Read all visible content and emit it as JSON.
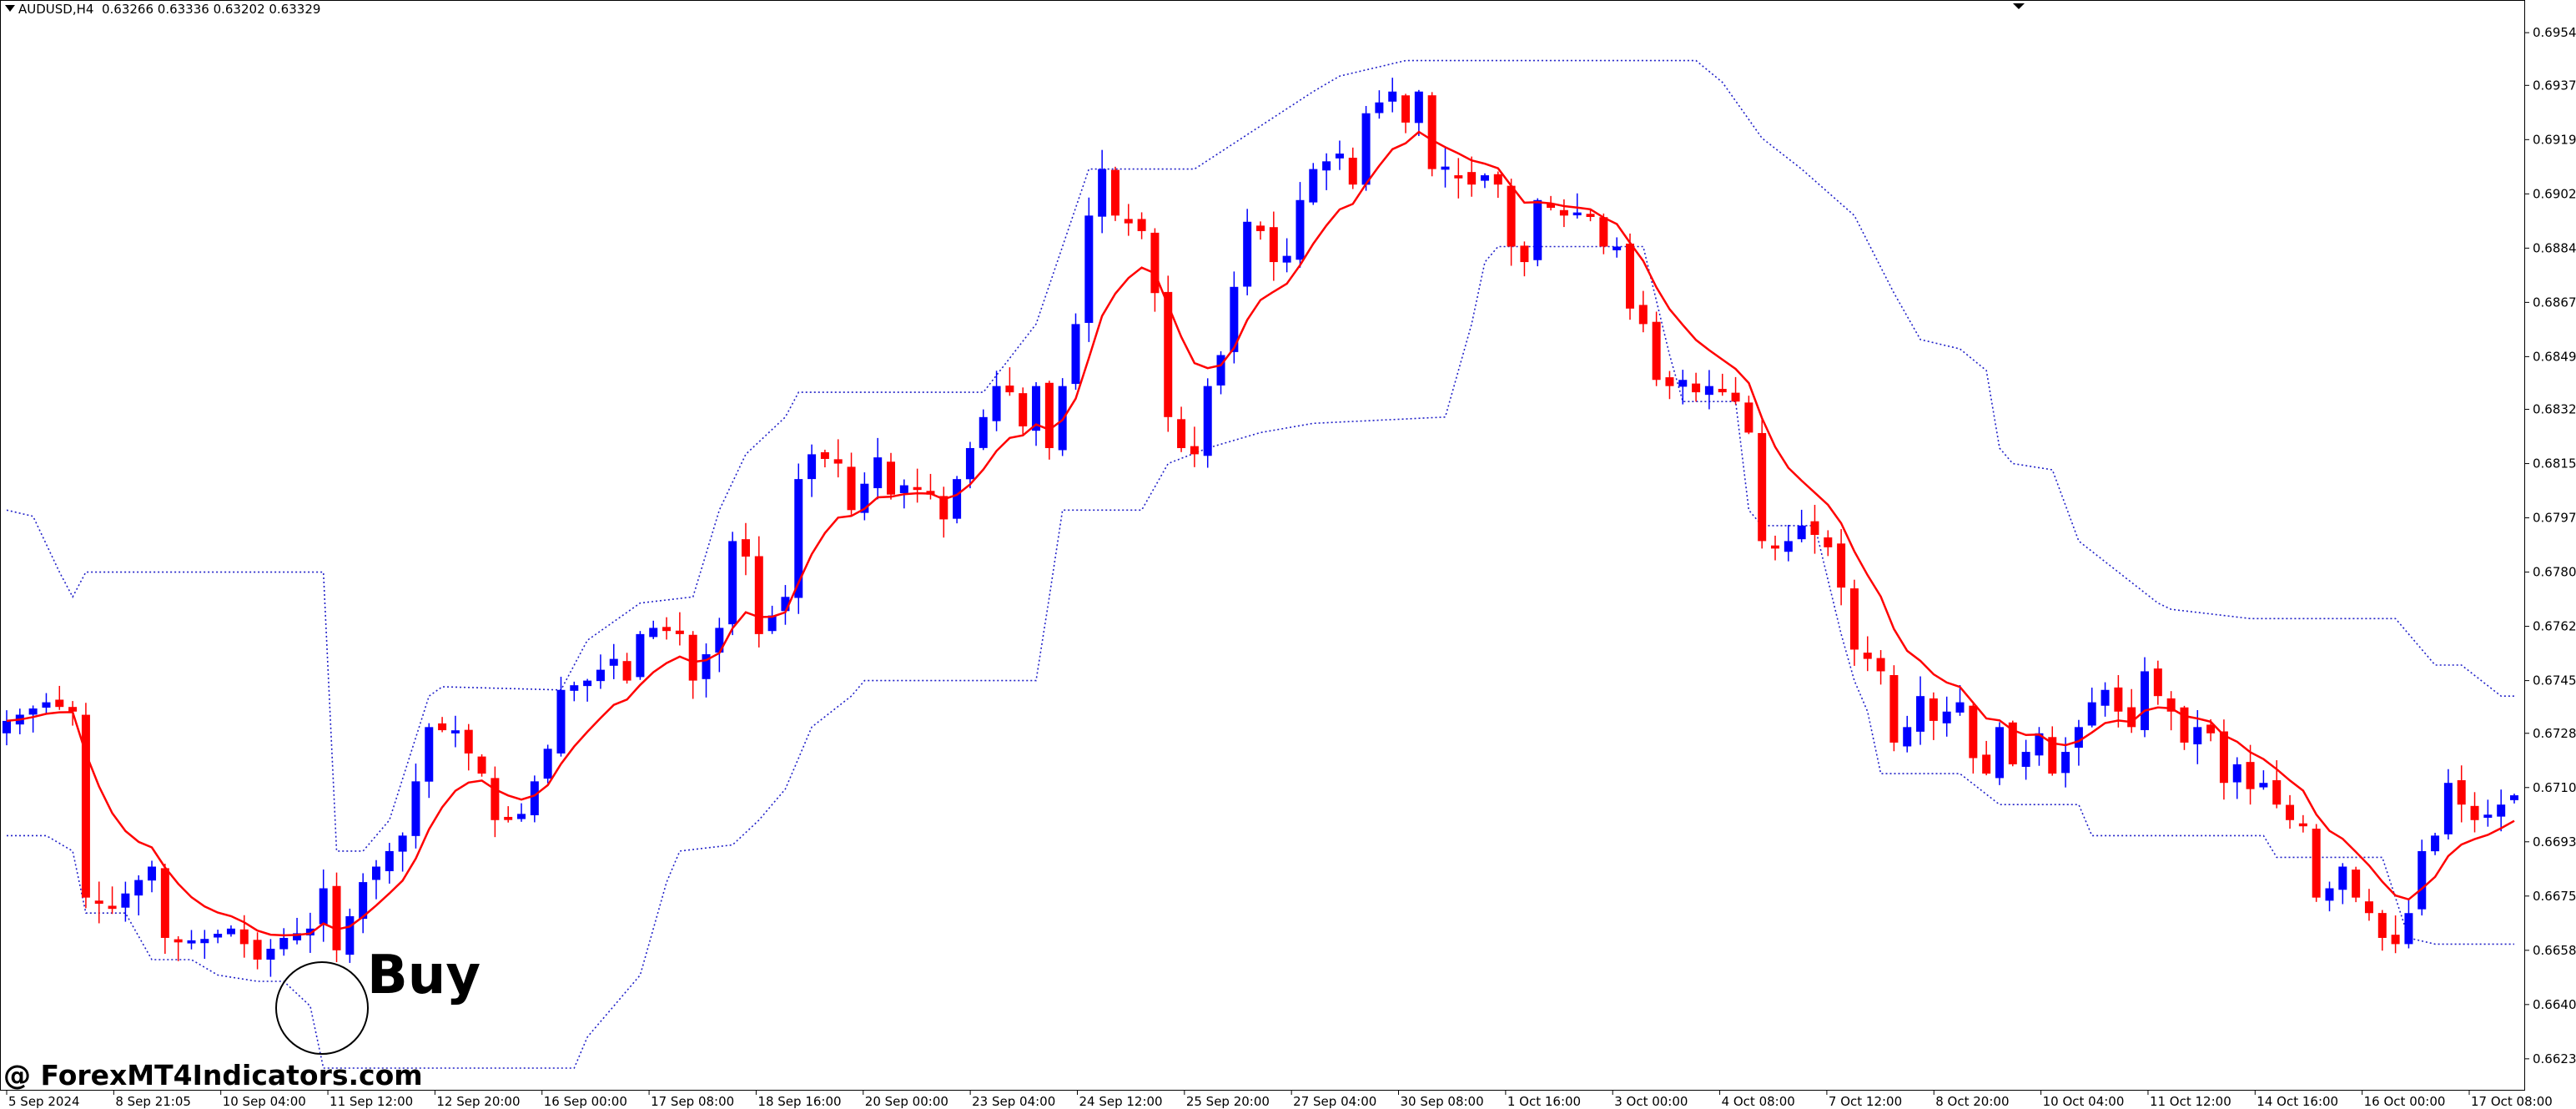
{
  "header": {
    "symbol": "AUDUSD,H4",
    "quote": "0.63266 0.63336 0.63202 0.63329"
  },
  "annotation": {
    "signal_label": "Buy"
  },
  "watermark": "@ ForexMT4Indicators.com",
  "colors": {
    "bull": "#0000ff",
    "bear": "#ff0000",
    "ma": "#ff0000",
    "channel": "#2020c8",
    "grid": "#000000"
  },
  "chart_data": {
    "type": "candlestick",
    "y_ticks": [
      "0.69540",
      "0.69370",
      "0.69195",
      "0.69020",
      "0.68845",
      "0.68670",
      "0.68495",
      "0.68325",
      "0.68150",
      "0.67975",
      "0.67800",
      "0.67625",
      "0.67450",
      "0.67280",
      "0.67105",
      "0.66930",
      "0.66755",
      "0.66580",
      "0.66405",
      "0.66230"
    ],
    "ylim": [
      0.6613,
      0.6964
    ],
    "x_ticks": [
      "5 Sep 2024",
      "8 Sep 21:05",
      "10 Sep 04:00",
      "11 Sep 12:00",
      "12 Sep 20:00",
      "16 Sep 00:00",
      "17 Sep 08:00",
      "18 Sep 16:00",
      "20 Sep 00:00",
      "23 Sep 04:00",
      "24 Sep 12:00",
      "25 Sep 20:00",
      "27 Sep 04:00",
      "30 Sep 08:00",
      "1 Oct 16:00",
      "3 Oct 00:00",
      "4 Oct 08:00",
      "7 Oct 12:00",
      "8 Oct 20:00",
      "10 Oct 04:00",
      "11 Oct 12:00",
      "14 Oct 16:00",
      "16 Oct 00:00",
      "17 Oct 08:00"
    ],
    "anchors": [
      [
        0,
        0.6732
      ],
      [
        3,
        0.6738
      ],
      [
        5,
        0.6735
      ],
      [
        6,
        0.6675
      ],
      [
        8,
        0.6672
      ],
      [
        11,
        0.6685
      ],
      [
        12,
        0.6662
      ],
      [
        14,
        0.666
      ],
      [
        17,
        0.6665
      ],
      [
        19,
        0.6655
      ],
      [
        21,
        0.6662
      ],
      [
        23,
        0.6665
      ],
      [
        24,
        0.6678
      ],
      [
        25,
        0.6658
      ],
      [
        27,
        0.668
      ],
      [
        30,
        0.6695
      ],
      [
        32,
        0.673
      ],
      [
        34,
        0.6728
      ],
      [
        36,
        0.6715
      ],
      [
        37,
        0.67
      ],
      [
        39,
        0.6702
      ],
      [
        41,
        0.6723
      ],
      [
        42,
        0.6742
      ],
      [
        44,
        0.6745
      ],
      [
        46,
        0.6752
      ],
      [
        47,
        0.6745
      ],
      [
        48,
        0.676
      ],
      [
        49,
        0.6762
      ],
      [
        51,
        0.676
      ],
      [
        52,
        0.6745
      ],
      [
        54,
        0.6762
      ],
      [
        55,
        0.679
      ],
      [
        56,
        0.6785
      ],
      [
        57,
        0.676
      ],
      [
        59,
        0.6772
      ],
      [
        60,
        0.681
      ],
      [
        61,
        0.6818
      ],
      [
        63,
        0.6815
      ],
      [
        64,
        0.68
      ],
      [
        66,
        0.6817
      ],
      [
        67,
        0.6805
      ],
      [
        68,
        0.6808
      ],
      [
        70,
        0.6805
      ],
      [
        71,
        0.6797
      ],
      [
        72,
        0.681
      ],
      [
        73,
        0.682
      ],
      [
        75,
        0.684
      ],
      [
        76,
        0.6838
      ],
      [
        77,
        0.6827
      ],
      [
        78,
        0.684
      ],
      [
        79,
        0.682
      ],
      [
        81,
        0.686
      ],
      [
        82,
        0.6895
      ],
      [
        83,
        0.691
      ],
      [
        84,
        0.6895
      ],
      [
        86,
        0.689
      ],
      [
        87,
        0.687
      ],
      [
        88,
        0.683
      ],
      [
        89,
        0.682
      ],
      [
        90,
        0.6818
      ],
      [
        91,
        0.684
      ],
      [
        92,
        0.685
      ],
      [
        93,
        0.6872
      ],
      [
        94,
        0.6893
      ],
      [
        95,
        0.689
      ],
      [
        96,
        0.688
      ],
      [
        97,
        0.6882
      ],
      [
        98,
        0.69
      ],
      [
        99,
        0.691
      ],
      [
        101,
        0.6915
      ],
      [
        102,
        0.6905
      ],
      [
        103,
        0.6928
      ],
      [
        105,
        0.6935
      ],
      [
        106,
        0.6925
      ],
      [
        107,
        0.6935
      ],
      [
        108,
        0.691
      ],
      [
        110,
        0.6908
      ],
      [
        111,
        0.6905
      ],
      [
        112,
        0.6908
      ],
      [
        113,
        0.6905
      ],
      [
        114,
        0.6885
      ],
      [
        115,
        0.688
      ],
      [
        116,
        0.69
      ],
      [
        118,
        0.6895
      ],
      [
        119,
        0.6896
      ],
      [
        120,
        0.6895
      ],
      [
        121,
        0.6885
      ],
      [
        122,
        0.6885
      ],
      [
        123,
        0.6865
      ],
      [
        124,
        0.686
      ],
      [
        125,
        0.6842
      ],
      [
        126,
        0.684
      ],
      [
        127,
        0.6842
      ],
      [
        128,
        0.6838
      ],
      [
        129,
        0.684
      ],
      [
        130,
        0.6838
      ],
      [
        131,
        0.6835
      ],
      [
        132,
        0.6825
      ],
      [
        133,
        0.679
      ],
      [
        134,
        0.6788
      ],
      [
        135,
        0.679
      ],
      [
        136,
        0.6795
      ],
      [
        137,
        0.6792
      ],
      [
        138,
        0.6788
      ],
      [
        139,
        0.6775
      ],
      [
        140,
        0.6755
      ],
      [
        141,
        0.6752
      ],
      [
        142,
        0.6748
      ],
      [
        143,
        0.6725
      ],
      [
        144,
        0.673
      ],
      [
        145,
        0.674
      ],
      [
        146,
        0.6732
      ],
      [
        147,
        0.6735
      ],
      [
        148,
        0.6738
      ],
      [
        149,
        0.672
      ],
      [
        150,
        0.6715
      ],
      [
        151,
        0.673
      ],
      [
        152,
        0.6718
      ],
      [
        153,
        0.6722
      ],
      [
        154,
        0.6728
      ],
      [
        155,
        0.6715
      ],
      [
        156,
        0.6722
      ],
      [
        157,
        0.673
      ],
      [
        158,
        0.6738
      ],
      [
        159,
        0.6742
      ],
      [
        160,
        0.6735
      ],
      [
        161,
        0.673
      ],
      [
        162,
        0.6748
      ],
      [
        163,
        0.674
      ],
      [
        164,
        0.6735
      ],
      [
        165,
        0.6725
      ],
      [
        166,
        0.673
      ],
      [
        167,
        0.6728
      ],
      [
        168,
        0.6712
      ],
      [
        169,
        0.6718
      ],
      [
        170,
        0.671
      ],
      [
        171,
        0.6712
      ],
      [
        172,
        0.6705
      ],
      [
        173,
        0.67
      ],
      [
        174,
        0.6698
      ],
      [
        175,
        0.6675
      ],
      [
        176,
        0.6678
      ],
      [
        177,
        0.6685
      ],
      [
        178,
        0.6675
      ],
      [
        179,
        0.667
      ],
      [
        180,
        0.6662
      ],
      [
        181,
        0.666
      ],
      [
        182,
        0.667
      ],
      [
        183,
        0.669
      ],
      [
        184,
        0.6695
      ],
      [
        185,
        0.6712
      ],
      [
        186,
        0.6705
      ],
      [
        187,
        0.67
      ],
      [
        188,
        0.67
      ],
      [
        189,
        0.6705
      ],
      [
        190,
        0.6708
      ]
    ],
    "candle_count": 191,
    "up_channel": [
      [
        0,
        0.68
      ],
      [
        2,
        0.6798
      ],
      [
        4,
        0.678
      ],
      [
        5,
        0.6772
      ],
      [
        6,
        0.678
      ],
      [
        24,
        0.678
      ],
      [
        25,
        0.669
      ],
      [
        27,
        0.669
      ],
      [
        29,
        0.67
      ],
      [
        32,
        0.674
      ],
      [
        33,
        0.6743
      ],
      [
        42,
        0.6742
      ],
      [
        44,
        0.6758
      ],
      [
        48,
        0.677
      ],
      [
        52,
        0.6772
      ],
      [
        54,
        0.68
      ],
      [
        56,
        0.6818
      ],
      [
        59,
        0.683
      ],
      [
        60,
        0.6838
      ],
      [
        74,
        0.6838
      ],
      [
        78,
        0.686
      ],
      [
        82,
        0.691
      ],
      [
        90,
        0.691
      ],
      [
        99,
        0.6935
      ],
      [
        101,
        0.694
      ],
      [
        106,
        0.6945
      ],
      [
        128,
        0.6945
      ],
      [
        130,
        0.6938
      ],
      [
        133,
        0.692
      ],
      [
        136,
        0.691
      ],
      [
        140,
        0.6895
      ],
      [
        143,
        0.687
      ],
      [
        145,
        0.6855
      ],
      [
        148,
        0.6852
      ],
      [
        150,
        0.6845
      ],
      [
        151,
        0.682
      ],
      [
        152,
        0.6815
      ],
      [
        155,
        0.6813
      ],
      [
        157,
        0.679
      ],
      [
        160,
        0.678
      ],
      [
        163,
        0.677
      ],
      [
        164,
        0.6768
      ],
      [
        170,
        0.6765
      ],
      [
        181,
        0.6765
      ],
      [
        184,
        0.675
      ],
      [
        186,
        0.675
      ],
      [
        189,
        0.674
      ],
      [
        190,
        0.674
      ]
    ],
    "down_channel": [
      [
        0,
        0.6695
      ],
      [
        3,
        0.6695
      ],
      [
        5,
        0.669
      ],
      [
        6,
        0.667
      ],
      [
        9,
        0.667
      ],
      [
        11,
        0.6655
      ],
      [
        14,
        0.6655
      ],
      [
        16,
        0.665
      ],
      [
        19,
        0.6648
      ],
      [
        21,
        0.6648
      ],
      [
        23,
        0.664
      ],
      [
        24,
        0.662
      ],
      [
        43,
        0.662
      ],
      [
        44,
        0.663
      ],
      [
        48,
        0.665
      ],
      [
        50,
        0.668
      ],
      [
        51,
        0.669
      ],
      [
        55,
        0.6692
      ],
      [
        57,
        0.67
      ],
      [
        59,
        0.671
      ],
      [
        60,
        0.672
      ],
      [
        61,
        0.673
      ],
      [
        64,
        0.674
      ],
      [
        65,
        0.6745
      ],
      [
        78,
        0.6745
      ],
      [
        79,
        0.6772
      ],
      [
        80,
        0.68
      ],
      [
        86,
        0.68
      ],
      [
        88,
        0.6815
      ],
      [
        91,
        0.682
      ],
      [
        95,
        0.6825
      ],
      [
        99,
        0.6828
      ],
      [
        109,
        0.683
      ],
      [
        111,
        0.686
      ],
      [
        112,
        0.688
      ],
      [
        113,
        0.6885
      ],
      [
        124,
        0.6885
      ],
      [
        126,
        0.685
      ],
      [
        127,
        0.6835
      ],
      [
        131,
        0.6835
      ],
      [
        132,
        0.68
      ],
      [
        133,
        0.6795
      ],
      [
        137,
        0.6795
      ],
      [
        139,
        0.676
      ],
      [
        140,
        0.6745
      ],
      [
        141,
        0.6735
      ],
      [
        142,
        0.6715
      ],
      [
        148,
        0.6715
      ],
      [
        151,
        0.6705
      ],
      [
        157,
        0.6705
      ],
      [
        158,
        0.6695
      ],
      [
        171,
        0.6695
      ],
      [
        172,
        0.6688
      ],
      [
        180,
        0.6688
      ],
      [
        182,
        0.6662
      ],
      [
        184,
        0.666
      ],
      [
        190,
        0.666
      ]
    ]
  }
}
